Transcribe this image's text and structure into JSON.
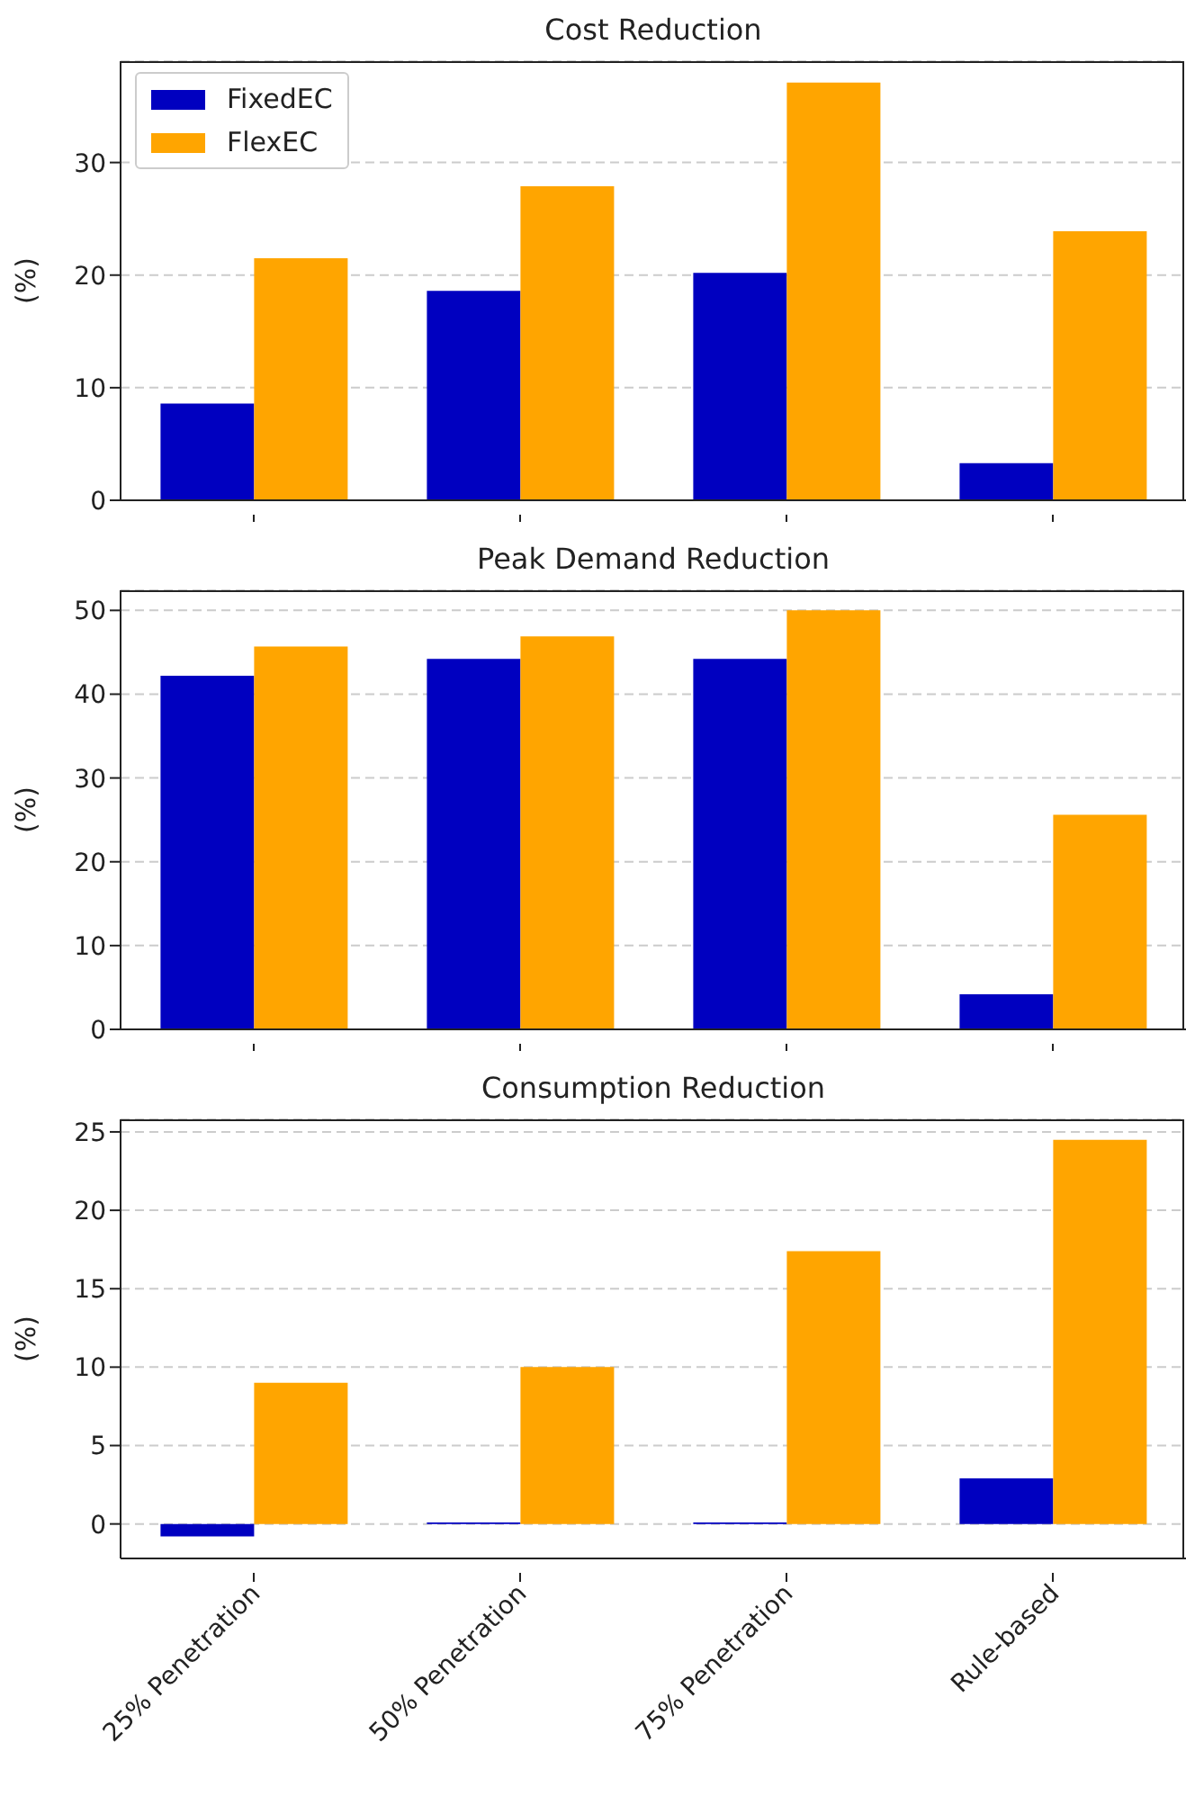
{
  "chart_data": [
    {
      "type": "bar",
      "title": "Cost Reduction",
      "ylabel": "(%)",
      "categories": [
        null,
        null,
        null,
        null
      ],
      "series": [
        {
          "name": "FixedEC",
          "color": "#0000c0",
          "values": [
            8.6,
            18.6,
            20.2,
            3.3
          ]
        },
        {
          "name": "FlexEC",
          "color": "#ffa500",
          "values": [
            21.5,
            27.9,
            37.1,
            23.9
          ]
        }
      ],
      "ylim": [
        0,
        39
      ],
      "yticks": [
        0,
        10,
        20,
        30
      ],
      "grid": "y",
      "legend": "top left",
      "tick_labels": "y"
    },
    {
      "type": "bar",
      "title": "Peak Demand Reduction",
      "ylabel": "(%)",
      "categories": [
        null,
        null,
        null,
        null
      ],
      "series": [
        {
          "color": "#0000c0",
          "values": [
            42.2,
            44.2,
            44.2,
            4.2
          ]
        },
        {
          "color": "#ffa500",
          "values": [
            45.7,
            46.9,
            50.0,
            25.6
          ]
        }
      ],
      "ylim": [
        0,
        52.4
      ],
      "yticks": [
        0,
        10,
        20,
        30,
        40,
        50
      ],
      "grid": "y",
      "tick_labels": "y"
    },
    {
      "type": "bar",
      "title": "Consumption Reduction",
      "ylabel": "(%)",
      "categories": [
        "25% Penetration",
        "50% Penetration",
        "75% Penetration",
        "Rule-based"
      ],
      "series": [
        {
          "color": "#0000c0",
          "values": [
            -0.8,
            0.1,
            0.1,
            2.9
          ]
        },
        {
          "color": "#ffa500",
          "values": [
            9.0,
            10.0,
            17.4,
            24.5
          ]
        }
      ],
      "ylim": [
        -2.2,
        25.8
      ],
      "yticks": [
        0,
        5,
        10,
        15,
        20,
        25
      ],
      "grid": "y"
    }
  ]
}
